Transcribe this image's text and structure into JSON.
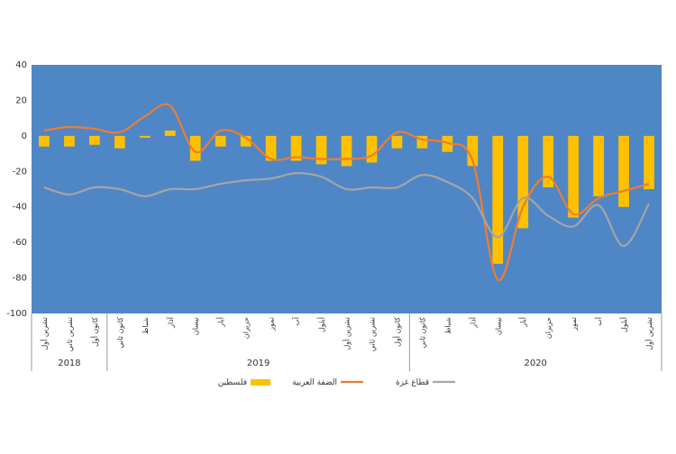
{
  "chart_data": {
    "type": "bar",
    "title": "",
    "xlabel": "",
    "ylabel": "",
    "ylim": [
      -100,
      40
    ],
    "yticks": [
      40,
      20,
      0,
      -20,
      -40,
      -60,
      -80,
      -100
    ],
    "grid": false,
    "legend_position": "bottom",
    "colors": {
      "plot_background": "#4f86c6",
      "bar": "#ffc000",
      "west_bank": "#ed7d31",
      "gaza": "#a5a5a5"
    },
    "categories": [
      "تشرين أول",
      "تشرين ثاني",
      "كانون أول",
      "كانون ثاني",
      "شباط",
      "آذار",
      "نيسان",
      "أيار",
      "حزيران",
      "تموز",
      "آب",
      "أيلول",
      "تشرين أول",
      "تشرين ثاني",
      "كانون أول",
      "كانون ثاني",
      "شباط",
      "آذار",
      "نيسان",
      "أيار",
      "حزيران",
      "تموز",
      "آب",
      "أيلول",
      "تشرين أول"
    ],
    "years": [
      {
        "label": "2018",
        "count": 3
      },
      {
        "label": "2019",
        "count": 12
      },
      {
        "label": "2020",
        "count": 10
      }
    ],
    "series": [
      {
        "name": "فلسطين",
        "kind": "bar",
        "values": [
          -6,
          -6,
          -5,
          -7,
          -1,
          3,
          -14,
          -6,
          -6,
          -14,
          -14,
          -16,
          -17,
          -15,
          -7,
          -7,
          -9,
          -17,
          -72,
          -52,
          -29,
          -46,
          -34,
          -40,
          -30
        ]
      },
      {
        "name": "الضفة العربية",
        "kind": "line",
        "values": [
          3,
          5,
          4,
          2,
          11,
          17,
          -9,
          3,
          -1,
          -13,
          -12,
          -13,
          -13,
          -11,
          2,
          -2,
          -4,
          -14,
          -81,
          -40,
          -23,
          -44,
          -35,
          -31,
          -27
        ]
      },
      {
        "name": "قطاع غزة",
        "kind": "line",
        "values": [
          -29,
          -33,
          -29,
          -30,
          -34,
          -30,
          -30,
          -27,
          -25,
          -24,
          -21,
          -23,
          -30,
          -29,
          -29,
          -22,
          -26,
          -35,
          -57,
          -35,
          -45,
          -51,
          -39,
          -62,
          -38
        ]
      }
    ]
  }
}
